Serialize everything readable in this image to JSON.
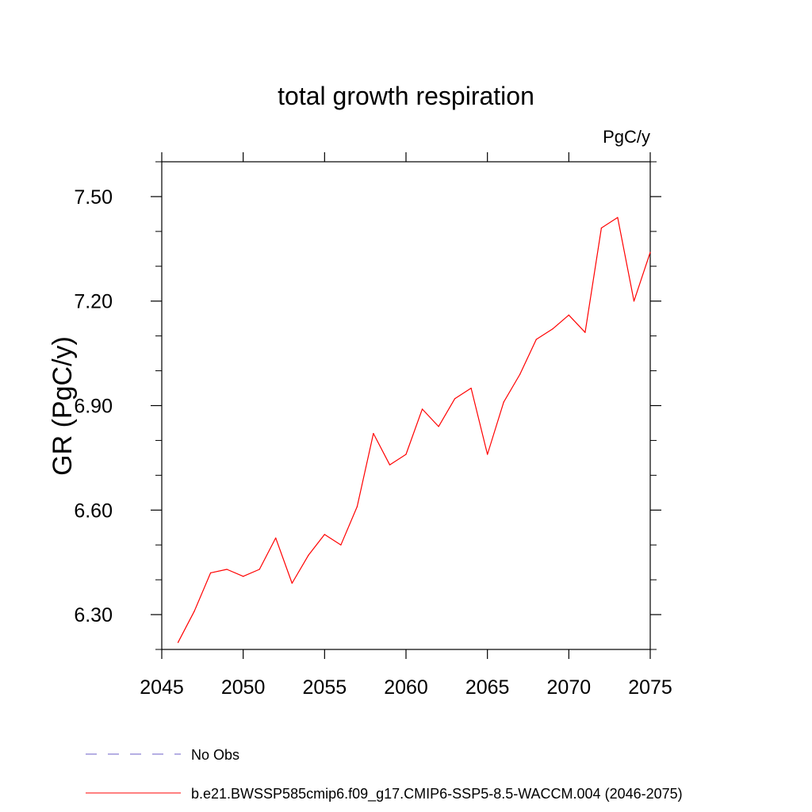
{
  "chart_data": {
    "type": "line",
    "title": "total growth respiration",
    "units": "PgC/y",
    "xlabel": "",
    "ylabel": "GR  (PgC/y)",
    "xlim": [
      2045,
      2075
    ],
    "ylim": [
      6.2,
      7.6
    ],
    "x_ticks": [
      2045,
      2050,
      2055,
      2060,
      2065,
      2070,
      2075
    ],
    "x_tick_labels": [
      "2045",
      "2050",
      "2055",
      "2060",
      "2065",
      "2070",
      "2075"
    ],
    "y_ticks": [
      6.3,
      6.6,
      6.9,
      7.2,
      7.5
    ],
    "y_tick_labels": [
      "6.30",
      "6.60",
      "6.90",
      "7.20",
      "7.50"
    ],
    "grid": false,
    "legend_position": "bottom",
    "series": [
      {
        "name": "b.e21.BWSSP585cmip6.f09_g17.CMIP6-SSP5-8.5-WACCM.004 (2046-2075)",
        "color": "#ff0000",
        "style": "solid",
        "x": [
          2046,
          2047,
          2048,
          2049,
          2050,
          2051,
          2052,
          2053,
          2054,
          2055,
          2056,
          2057,
          2058,
          2059,
          2060,
          2061,
          2062,
          2063,
          2064,
          2065,
          2066,
          2067,
          2068,
          2069,
          2070,
          2071,
          2072,
          2073,
          2074,
          2075
        ],
        "y": [
          6.22,
          6.31,
          6.42,
          6.43,
          6.41,
          6.43,
          6.52,
          6.39,
          6.47,
          6.53,
          6.5,
          6.61,
          6.82,
          6.73,
          6.76,
          6.89,
          6.84,
          6.92,
          6.95,
          6.76,
          6.91,
          6.99,
          7.09,
          7.12,
          7.16,
          7.11,
          7.41,
          7.44,
          7.2,
          7.34
        ]
      }
    ],
    "legend": [
      {
        "label": "No Obs",
        "color": "#6b5fc7",
        "style": "dashed"
      },
      {
        "label": "b.e21.BWSSP585cmip6.f09_g17.CMIP6-SSP5-8.5-WACCM.004 (2046-2075)",
        "color": "#ff0000",
        "style": "solid"
      }
    ]
  }
}
